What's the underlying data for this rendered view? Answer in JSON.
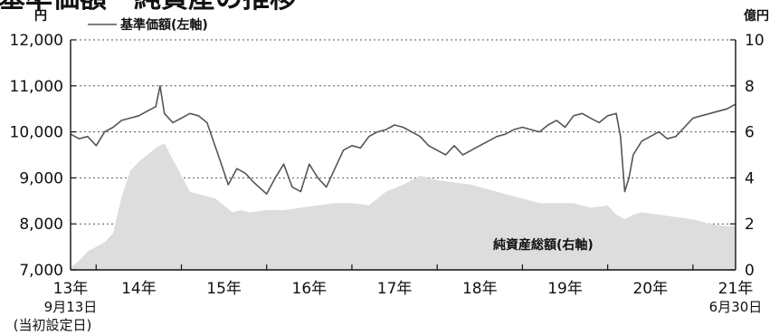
{
  "chart_data": {
    "type": "line",
    "title": "基準価額・純資産の推移",
    "left_axis": {
      "unit": "円",
      "range": [
        7000,
        12000
      ],
      "ticks": [
        {
          "value": 7000,
          "label": "7,000"
        },
        {
          "value": 8000,
          "label": "8,000"
        },
        {
          "value": 9000,
          "label": "9,000"
        },
        {
          "value": 10000,
          "label": "10,000"
        },
        {
          "value": 11000,
          "label": "11,000"
        },
        {
          "value": 12000,
          "label": "12,000"
        }
      ]
    },
    "right_axis": {
      "unit": "億円",
      "range": [
        0,
        10
      ],
      "ticks": [
        {
          "value": 0,
          "label": "0"
        },
        {
          "value": 2,
          "label": "2"
        },
        {
          "value": 4,
          "label": "4"
        },
        {
          "value": 6,
          "label": "6"
        },
        {
          "value": 8,
          "label": "8"
        },
        {
          "value": 10,
          "label": "10"
        }
      ]
    },
    "x_axis": {
      "range": [
        2013.7,
        2021.5
      ],
      "labels": [
        {
          "value": 2013.7,
          "line1": "13年",
          "line2": "9月13日",
          "line3": "(当初設定日)"
        },
        {
          "value": 2014.5,
          "line1": "14年"
        },
        {
          "value": 2015.5,
          "line1": "15年"
        },
        {
          "value": 2016.5,
          "line1": "16年"
        },
        {
          "value": 2017.5,
          "line1": "17年"
        },
        {
          "value": 2018.5,
          "line1": "18年"
        },
        {
          "value": 2019.5,
          "line1": "19年"
        },
        {
          "value": 2020.5,
          "line1": "20年"
        },
        {
          "value": 2021.5,
          "line1": "21年",
          "line2": "6月30日"
        }
      ],
      "tick_years": [
        2014,
        2015,
        2016,
        2017,
        2018,
        2019,
        2020,
        2021
      ]
    },
    "gridlines": "dotted, horizontal",
    "legend": {
      "placement": "top-left",
      "label": "基準価額(左軸)"
    },
    "series": [
      {
        "name": "基準価額(左軸)",
        "axis": "left",
        "color": "#555555",
        "x": [
          2013.7,
          2013.8,
          2013.9,
          2014.0,
          2014.1,
          2014.2,
          2014.3,
          2014.4,
          2014.5,
          2014.6,
          2014.7,
          2014.75,
          2014.8,
          2014.9,
          2015.0,
          2015.1,
          2015.2,
          2015.3,
          2015.45,
          2015.55,
          2015.65,
          2015.75,
          2015.85,
          2016.0,
          2016.1,
          2016.2,
          2016.3,
          2016.4,
          2016.5,
          2016.6,
          2016.7,
          2016.8,
          2016.9,
          2017.0,
          2017.1,
          2017.2,
          2017.3,
          2017.4,
          2017.5,
          2017.6,
          2017.7,
          2017.8,
          2017.9,
          2018.0,
          2018.1,
          2018.2,
          2018.3,
          2018.4,
          2018.5,
          2018.6,
          2018.7,
          2018.8,
          2018.9,
          2019.0,
          2019.1,
          2019.2,
          2019.3,
          2019.4,
          2019.5,
          2019.6,
          2019.7,
          2019.8,
          2019.9,
          2020.0,
          2020.1,
          2020.15,
          2020.2,
          2020.25,
          2020.3,
          2020.4,
          2020.5,
          2020.6,
          2020.7,
          2020.8,
          2020.9,
          2021.0,
          2021.1,
          2021.2,
          2021.3,
          2021.4,
          2021.5
        ],
        "values": [
          9950,
          9850,
          9900,
          9700,
          10000,
          10100,
          10250,
          10300,
          10350,
          10450,
          10550,
          11000,
          10400,
          10200,
          10300,
          10400,
          10350,
          10200,
          9400,
          8850,
          9200,
          9100,
          8900,
          8650,
          9000,
          9300,
          8800,
          8700,
          9300,
          9000,
          8800,
          9200,
          9600,
          9700,
          9650,
          9900,
          10000,
          10050,
          10150,
          10100,
          10000,
          9900,
          9700,
          9600,
          9500,
          9700,
          9500,
          9600,
          9700,
          9800,
          9900,
          9950,
          10050,
          10100,
          10050,
          10000,
          10150,
          10250,
          10100,
          10350,
          10400,
          10300,
          10200,
          10350,
          10400,
          9900,
          8700,
          9000,
          9500,
          9800,
          9900,
          10000,
          9850,
          9900,
          10100,
          10300,
          10350,
          10400,
          10450,
          10500,
          10600
        ]
      },
      {
        "name": "純資産総額(右軸)",
        "axis": "right",
        "type": "area",
        "color": "#dddddd",
        "x": [
          2013.7,
          2013.8,
          2013.9,
          2014.0,
          2014.1,
          2014.2,
          2014.3,
          2014.4,
          2014.5,
          2014.6,
          2014.7,
          2014.8,
          2014.9,
          2015.0,
          2015.1,
          2015.2,
          2015.3,
          2015.4,
          2015.5,
          2015.6,
          2015.7,
          2015.8,
          2016.0,
          2016.2,
          2016.4,
          2016.6,
          2016.8,
          2017.0,
          2017.2,
          2017.4,
          2017.6,
          2017.8,
          2018.0,
          2018.2,
          2018.4,
          2018.6,
          2018.8,
          2019.0,
          2019.2,
          2019.4,
          2019.6,
          2019.8,
          2020.0,
          2020.1,
          2020.2,
          2020.3,
          2020.4,
          2020.6,
          2020.8,
          2021.0,
          2021.2,
          2021.4,
          2021.5
        ],
        "values": [
          0.1,
          0.4,
          0.8,
          1.0,
          1.2,
          1.6,
          3.2,
          4.3,
          4.7,
          5.0,
          5.3,
          5.5,
          4.8,
          4.1,
          3.4,
          3.3,
          3.2,
          3.1,
          2.8,
          2.5,
          2.6,
          2.5,
          2.6,
          2.6,
          2.7,
          2.8,
          2.9,
          2.9,
          2.8,
          3.4,
          3.7,
          4.1,
          3.9,
          3.8,
          3.7,
          3.5,
          3.3,
          3.1,
          2.9,
          2.9,
          2.9,
          2.7,
          2.8,
          2.4,
          2.2,
          2.4,
          2.5,
          2.4,
          2.3,
          2.2,
          2.0,
          1.9,
          1.9
        ]
      }
    ],
    "annotations": [
      {
        "text": "純資産総額(右軸)",
        "x": 2019.6,
        "y_right": 1.1
      }
    ]
  }
}
